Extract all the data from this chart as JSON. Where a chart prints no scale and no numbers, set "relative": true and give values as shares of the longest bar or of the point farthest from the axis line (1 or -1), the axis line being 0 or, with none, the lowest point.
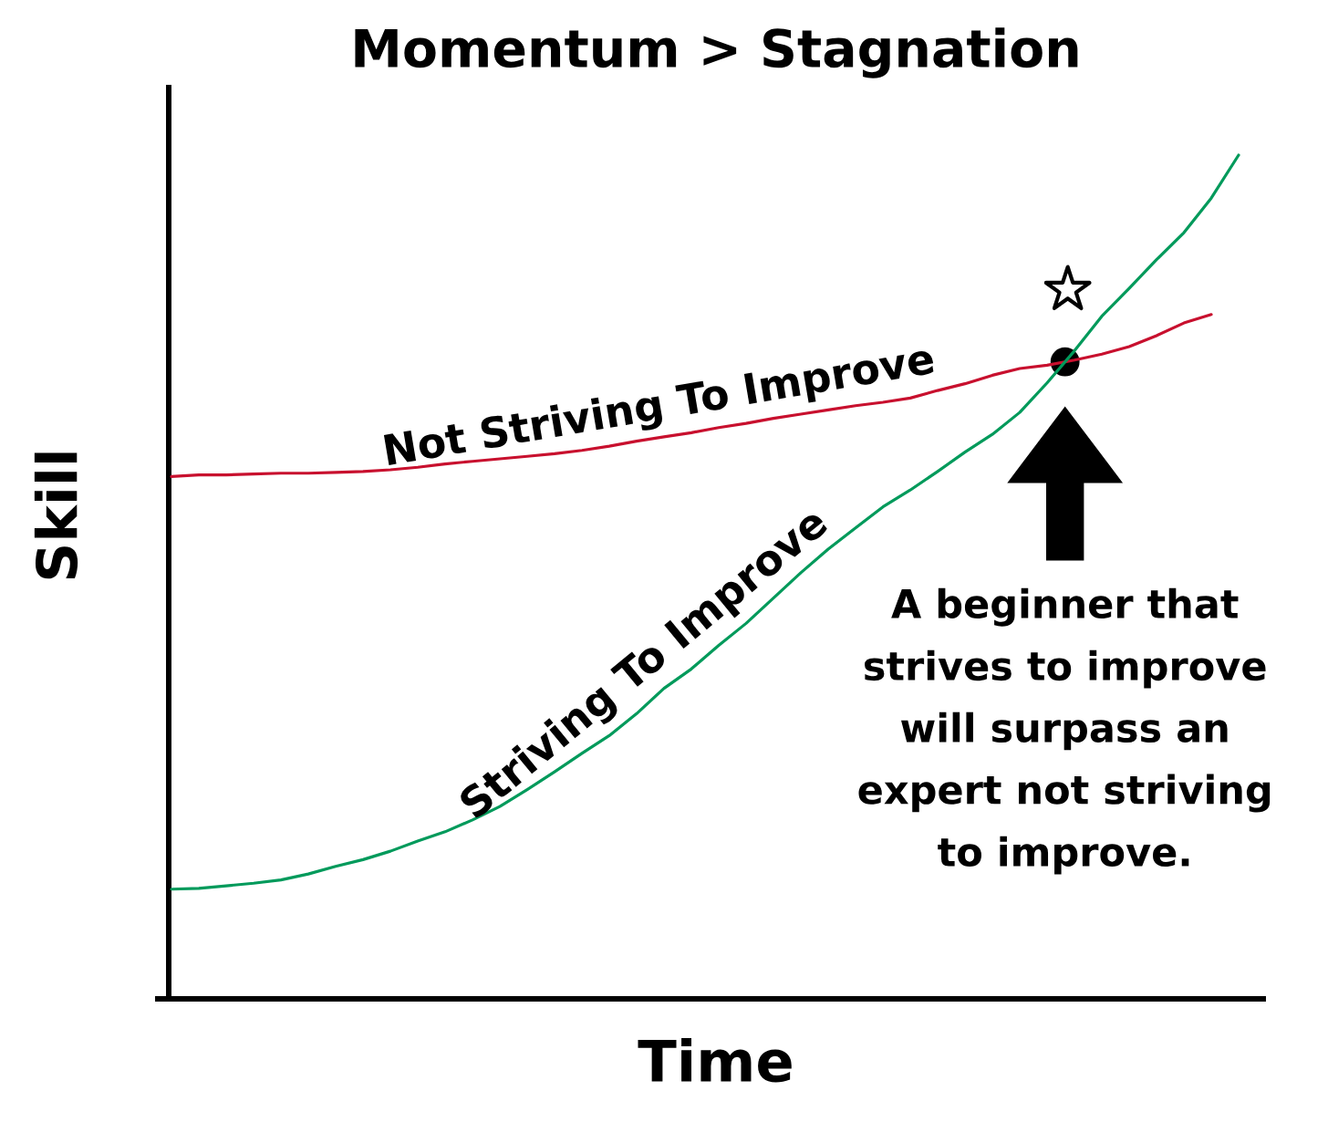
{
  "chart_data": {
    "type": "line",
    "title": "Momentum > Stagnation",
    "xlabel": "Time",
    "ylabel": "Skill",
    "relative": true,
    "categories": [
      null,
      null,
      null,
      null,
      null,
      null,
      null,
      null,
      null,
      null,
      null,
      null,
      null,
      null,
      null,
      null,
      null,
      null,
      null,
      null,
      null,
      null,
      null,
      null,
      null,
      null,
      null,
      null,
      null,
      null,
      null,
      null,
      null,
      null,
      null,
      null,
      null,
      null,
      null,
      null
    ],
    "series": [
      {
        "name": "Not Striving To Improve",
        "color": "#c8102e",
        "values": [
          0.619,
          0.621,
          0.621,
          0.622,
          0.623,
          0.623,
          0.624,
          0.625,
          0.627,
          0.63,
          0.634,
          0.637,
          0.64,
          0.643,
          0.646,
          0.65,
          0.655,
          0.661,
          0.666,
          0.671,
          0.677,
          0.682,
          0.688,
          0.693,
          0.698,
          0.703,
          0.707,
          0.712,
          0.721,
          0.729,
          0.739,
          0.747,
          0.751,
          0.757,
          0.764,
          0.773,
          0.786,
          0.801,
          0.811,
          null
        ]
      },
      {
        "name": "Striving To Improve",
        "color": "#009a5b",
        "values": [
          0.13,
          0.131,
          0.134,
          0.137,
          0.141,
          0.148,
          0.157,
          0.165,
          0.175,
          0.187,
          0.198,
          0.212,
          0.228,
          0.248,
          0.269,
          0.291,
          0.312,
          0.338,
          0.368,
          0.391,
          0.419,
          0.445,
          0.475,
          0.505,
          0.533,
          0.558,
          0.583,
          0.603,
          0.625,
          0.648,
          0.669,
          0.695,
          0.73,
          0.768,
          0.809,
          0.842,
          0.876,
          0.908,
          0.949,
          1.0
        ]
      }
    ],
    "annotations": [
      "A beginner that\nstrives to improve\nwill surpass an\nexpert not striving\nto improve."
    ]
  }
}
